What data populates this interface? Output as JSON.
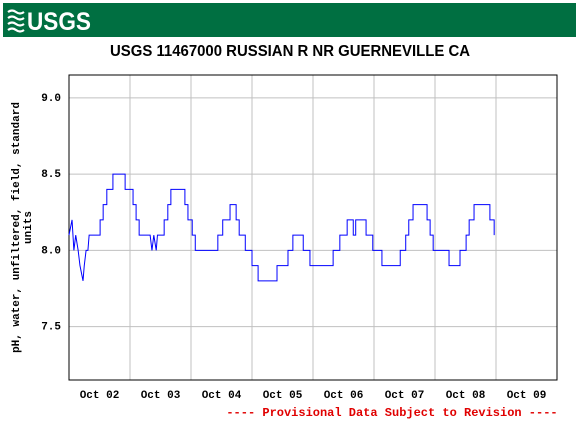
{
  "logo": "USGS",
  "chart_data": {
    "type": "line",
    "title": "USGS 11467000 RUSSIAN R NR GUERNEVILLE CA",
    "ylabel": [
      "pH, water, unfiltered, field, standard",
      "units"
    ],
    "footer": "---- Provisional Data Subject to Revision ----",
    "grid": true,
    "xlim": [
      2,
      10
    ],
    "ylim": [
      7.15,
      9.15
    ],
    "xticks": [
      {
        "value": 2,
        "label": "Oct 02"
      },
      {
        "value": 3,
        "label": "Oct 03"
      },
      {
        "value": 4,
        "label": "Oct 04"
      },
      {
        "value": 5,
        "label": "Oct 05"
      },
      {
        "value": 6,
        "label": "Oct 06"
      },
      {
        "value": 7,
        "label": "Oct 07"
      },
      {
        "value": 8,
        "label": "Oct 08"
      },
      {
        "value": 9,
        "label": "Oct 09"
      }
    ],
    "yticks": [
      {
        "value": 7.5,
        "label": "7.5"
      },
      {
        "value": 8,
        "label": "8.0"
      },
      {
        "value": 8.5,
        "label": "8.5"
      },
      {
        "value": 9,
        "label": "9.0"
      }
    ],
    "x": [
      2.0,
      2.05,
      2.08,
      2.11,
      2.15,
      2.18,
      2.23,
      2.25,
      2.28,
      2.31,
      2.33,
      2.51,
      2.51,
      2.56,
      2.56,
      2.62,
      2.62,
      2.72,
      2.72,
      2.92,
      2.92,
      3.05,
      3.05,
      3.1,
      3.1,
      3.15,
      3.15,
      3.33,
      3.36,
      3.39,
      3.43,
      3.45,
      3.56,
      3.56,
      3.62,
      3.62,
      3.67,
      3.67,
      3.9,
      3.9,
      3.95,
      3.95,
      4.02,
      4.02,
      4.07,
      4.07,
      4.44,
      4.44,
      4.52,
      4.52,
      4.64,
      4.64,
      4.74,
      4.74,
      4.79,
      4.79,
      4.89,
      4.89,
      5.0,
      5.0,
      5.1,
      5.1,
      5.41,
      5.41,
      5.59,
      5.59,
      5.67,
      5.67,
      5.84,
      5.84,
      5.95,
      5.95,
      6.33,
      6.33,
      6.44,
      6.44,
      6.56,
      6.56,
      6.66,
      6.66,
      6.7,
      6.7,
      6.87,
      6.87,
      6.98,
      6.98,
      7.13,
      7.13,
      7.43,
      7.43,
      7.52,
      7.52,
      7.57,
      7.57,
      7.64,
      7.64,
      7.87,
      7.87,
      7.92,
      7.92,
      7.97,
      7.97,
      8.23,
      8.23,
      8.41,
      8.41,
      8.51,
      8.51,
      8.56,
      8.56,
      8.64,
      8.64,
      8.9,
      8.9,
      8.97,
      8.97
    ],
    "series": [
      {
        "color": "#0000ff",
        "values": [
          8.1,
          8.2,
          8.0,
          8.1,
          8.0,
          7.9,
          7.8,
          7.9,
          8.0,
          8.0,
          8.1,
          8.1,
          8.2,
          8.2,
          8.3,
          8.3,
          8.4,
          8.4,
          8.5,
          8.5,
          8.4,
          8.4,
          8.3,
          8.3,
          8.2,
          8.2,
          8.1,
          8.1,
          8.0,
          8.1,
          8.0,
          8.1,
          8.1,
          8.2,
          8.2,
          8.3,
          8.3,
          8.4,
          8.4,
          8.3,
          8.3,
          8.2,
          8.2,
          8.1,
          8.1,
          8.0,
          8.0,
          8.1,
          8.1,
          8.2,
          8.2,
          8.3,
          8.3,
          8.2,
          8.2,
          8.1,
          8.1,
          8.0,
          8.0,
          7.9,
          7.9,
          7.8,
          7.8,
          7.9,
          7.9,
          8.0,
          8.0,
          8.1,
          8.1,
          8.0,
          8.0,
          7.9,
          7.9,
          8.0,
          8.0,
          8.1,
          8.1,
          8.2,
          8.2,
          8.1,
          8.1,
          8.2,
          8.2,
          8.1,
          8.1,
          8.0,
          8.0,
          7.9,
          7.9,
          8.0,
          8.0,
          8.1,
          8.1,
          8.2,
          8.2,
          8.3,
          8.3,
          8.2,
          8.2,
          8.1,
          8.1,
          8.0,
          8.0,
          7.9,
          7.9,
          8.0,
          8.0,
          8.1,
          8.1,
          8.2,
          8.2,
          8.3,
          8.3,
          8.2,
          8.2,
          8.1
        ]
      }
    ]
  }
}
